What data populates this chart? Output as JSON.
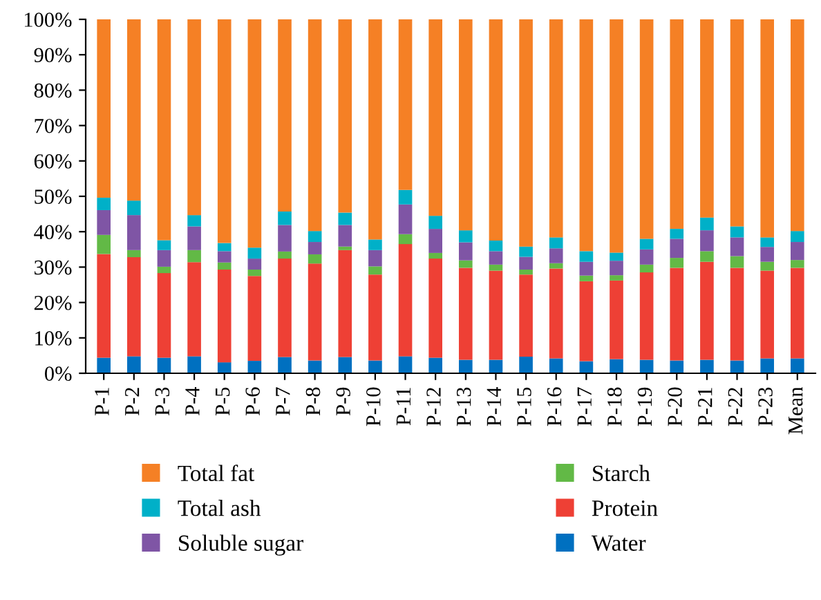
{
  "chart_data": {
    "type": "bar",
    "stacked": true,
    "categories": [
      "P-1",
      "P-2",
      "P-3",
      "P-4",
      "P-5",
      "P-6",
      "P-7",
      "P-8",
      "P-9",
      "P-10",
      "P-11",
      "P-12",
      "P-13",
      "P-14",
      "P-15",
      "P-16",
      "P-17",
      "P-18",
      "P-19",
      "P-20",
      "P-21",
      "P-22",
      "P-23",
      "Mean"
    ],
    "series": [
      {
        "name": "Water",
        "color": "#0070c0",
        "values": [
          4.4,
          4.8,
          4.4,
          4.8,
          3.1,
          3.5,
          4.6,
          3.6,
          4.6,
          3.6,
          4.8,
          4.4,
          3.8,
          3.8,
          4.7,
          4.2,
          3.4,
          4.0,
          3.8,
          3.6,
          3.8,
          3.6,
          4.2,
          4.2
        ]
      },
      {
        "name": "Protein",
        "color": "#ee4035",
        "values": [
          29.3,
          28.0,
          23.9,
          26.6,
          26.2,
          24.0,
          27.8,
          27.4,
          30.2,
          24.3,
          31.7,
          28.0,
          26.0,
          25.2,
          23.2,
          25.4,
          22.6,
          22.2,
          24.7,
          26.2,
          27.7,
          26.2,
          24.8,
          25.6
        ]
      },
      {
        "name": "Starch",
        "color": "#62b946",
        "values": [
          5.4,
          2.0,
          1.8,
          3.4,
          2.0,
          1.8,
          2.0,
          2.6,
          1.0,
          2.3,
          2.8,
          1.6,
          2.1,
          1.7,
          1.4,
          1.5,
          1.6,
          1.5,
          2.2,
          2.8,
          3.0,
          3.3,
          2.5,
          2.2
        ]
      },
      {
        "name": "Soluble sugar",
        "color": "#7f55a5",
        "values": [
          7.0,
          9.9,
          4.7,
          6.7,
          3.2,
          3.1,
          7.5,
          3.5,
          6.1,
          4.6,
          8.4,
          6.8,
          5.1,
          3.8,
          3.6,
          4.2,
          3.9,
          4.1,
          4.3,
          5.4,
          5.9,
          5.3,
          4.2,
          5.1
        ]
      },
      {
        "name": "Total ash",
        "color": "#00b0c8",
        "values": [
          3.5,
          4.1,
          2.8,
          3.2,
          2.3,
          3.1,
          3.8,
          3.1,
          3.5,
          3.0,
          4.1,
          3.7,
          3.4,
          3.0,
          2.9,
          3.1,
          3.0,
          2.3,
          3.0,
          2.8,
          3.6,
          3.1,
          2.7,
          3.1
        ]
      },
      {
        "name": "Total fat",
        "color": "#f58025",
        "values": [
          50.4,
          51.2,
          62.4,
          55.3,
          63.2,
          64.5,
          54.3,
          59.8,
          54.6,
          62.2,
          48.2,
          55.5,
          59.6,
          62.5,
          64.2,
          61.6,
          65.5,
          65.9,
          62.0,
          59.2,
          56.0,
          58.5,
          61.6,
          59.8
        ]
      }
    ],
    "ylim": [
      0,
      100
    ],
    "yticks": [
      {
        "value": 0,
        "label": "0%"
      },
      {
        "value": 10,
        "label": "10%"
      },
      {
        "value": 20,
        "label": "20%"
      },
      {
        "value": 30,
        "label": "30%"
      },
      {
        "value": 40,
        "label": "40%"
      },
      {
        "value": 50,
        "label": "50%"
      },
      {
        "value": 60,
        "label": "60%"
      },
      {
        "value": 70,
        "label": "70%"
      },
      {
        "value": 80,
        "label": "80%"
      },
      {
        "value": 90,
        "label": "90%"
      },
      {
        "value": 100,
        "label": "100%"
      }
    ],
    "grid": false,
    "legend": "bottom"
  }
}
